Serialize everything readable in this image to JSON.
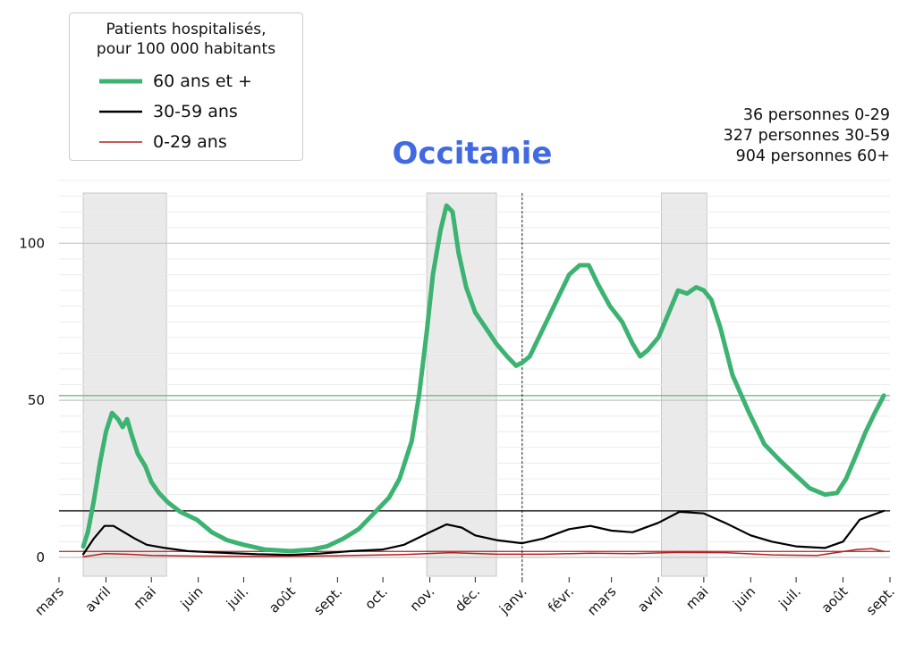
{
  "chart_data": {
    "type": "line",
    "title": "Occitanie",
    "legend": {
      "title_line1": "Patients hospitalisés,",
      "title_line2": "pour 100 000 habitants",
      "placement": "top-left"
    },
    "counts": {
      "line1": "36 personnes 0-29",
      "line2": "327 personnes 30-59",
      "line3": "904 personnes 60+"
    },
    "x_tick_labels": [
      "mars",
      "avril",
      "mai",
      "juin",
      "juil.",
      "août",
      "sept.",
      "oct.",
      "nov.",
      "déc.",
      "janv.",
      "févr.",
      "mars",
      "avril",
      "mai",
      "juin",
      "juil.",
      "août",
      "sept."
    ],
    "x_tick_dates": [
      "2020-03-01",
      "2020-04-01",
      "2020-05-01",
      "2020-06-01",
      "2020-07-01",
      "2020-08-01",
      "2020-09-01",
      "2020-10-01",
      "2020-11-01",
      "2020-12-01",
      "2021-01-01",
      "2021-02-01",
      "2021-03-01",
      "2021-04-01",
      "2021-05-01",
      "2021-06-01",
      "2021-07-01",
      "2021-08-01",
      "2021-09-01"
    ],
    "x_range": [
      "2020-03-01",
      "2021-09-01"
    ],
    "y_ticks": [
      0,
      50,
      100
    ],
    "y_tick_labels": [
      "0",
      "50",
      "100"
    ],
    "ylim": [
      -6,
      120
    ],
    "grid": true,
    "shaded_periods": [
      {
        "start": "2020-03-17",
        "end": "2020-05-11"
      },
      {
        "start": "2020-10-30",
        "end": "2020-12-15"
      },
      {
        "start": "2021-04-03",
        "end": "2021-05-03"
      }
    ],
    "vertical_marker": "2021-01-01",
    "series": [
      {
        "name": "60 ans et +",
        "color": "#3cb371",
        "reference_level": 51.5,
        "points": [
          [
            "2020-03-17",
            3.5
          ],
          [
            "2020-03-20",
            8
          ],
          [
            "2020-03-24",
            18
          ],
          [
            "2020-03-28",
            30
          ],
          [
            "2020-04-01",
            40
          ],
          [
            "2020-04-05",
            46
          ],
          [
            "2020-04-09",
            44
          ],
          [
            "2020-04-12",
            41.5
          ],
          [
            "2020-04-15",
            44
          ],
          [
            "2020-04-18",
            39
          ],
          [
            "2020-04-22",
            33
          ],
          [
            "2020-04-27",
            29
          ],
          [
            "2020-05-01",
            24
          ],
          [
            "2020-05-06",
            20.5
          ],
          [
            "2020-05-12",
            17.5
          ],
          [
            "2020-05-20",
            14.5
          ],
          [
            "2020-05-31",
            12
          ],
          [
            "2020-06-10",
            8
          ],
          [
            "2020-06-20",
            5.5
          ],
          [
            "2020-07-01",
            4
          ],
          [
            "2020-07-15",
            2.5
          ],
          [
            "2020-08-01",
            2
          ],
          [
            "2020-08-15",
            2.5
          ],
          [
            "2020-08-25",
            3.5
          ],
          [
            "2020-09-05",
            6
          ],
          [
            "2020-09-15",
            9
          ],
          [
            "2020-09-25",
            14
          ],
          [
            "2020-10-05",
            19
          ],
          [
            "2020-10-12",
            25
          ],
          [
            "2020-10-20",
            37
          ],
          [
            "2020-10-25",
            52
          ],
          [
            "2020-10-30",
            72
          ],
          [
            "2020-11-03",
            90
          ],
          [
            "2020-11-08",
            104
          ],
          [
            "2020-11-12",
            112
          ],
          [
            "2020-11-16",
            110
          ],
          [
            "2020-11-20",
            97
          ],
          [
            "2020-11-25",
            86
          ],
          [
            "2020-12-01",
            78
          ],
          [
            "2020-12-08",
            73
          ],
          [
            "2020-12-15",
            68
          ],
          [
            "2020-12-22",
            64
          ],
          [
            "2020-12-28",
            61
          ],
          [
            "2021-01-01",
            62
          ],
          [
            "2021-01-06",
            64
          ],
          [
            "2021-01-12",
            70
          ],
          [
            "2021-01-18",
            76
          ],
          [
            "2021-01-24",
            82
          ],
          [
            "2021-02-01",
            90
          ],
          [
            "2021-02-08",
            93
          ],
          [
            "2021-02-14",
            93
          ],
          [
            "2021-02-20",
            87
          ],
          [
            "2021-02-28",
            80
          ],
          [
            "2021-03-08",
            75
          ],
          [
            "2021-03-15",
            68
          ],
          [
            "2021-03-20",
            64
          ],
          [
            "2021-03-25",
            66
          ],
          [
            "2021-04-01",
            70
          ],
          [
            "2021-04-08",
            78
          ],
          [
            "2021-04-14",
            85
          ],
          [
            "2021-04-20",
            84
          ],
          [
            "2021-04-26",
            86
          ],
          [
            "2021-05-01",
            85
          ],
          [
            "2021-05-06",
            82
          ],
          [
            "2021-05-12",
            73
          ],
          [
            "2021-05-20",
            58
          ],
          [
            "2021-05-31",
            46
          ],
          [
            "2021-06-10",
            36
          ],
          [
            "2021-06-20",
            31
          ],
          [
            "2021-07-01",
            26
          ],
          [
            "2021-07-10",
            22
          ],
          [
            "2021-07-20",
            20
          ],
          [
            "2021-07-28",
            20.5
          ],
          [
            "2021-08-03",
            25
          ],
          [
            "2021-08-10",
            33
          ],
          [
            "2021-08-16",
            40
          ],
          [
            "2021-08-22",
            46
          ],
          [
            "2021-08-28",
            51.5
          ]
        ]
      },
      {
        "name": "30-59 ans",
        "color": "#000000",
        "reference_level": 14.8,
        "points": [
          [
            "2020-03-17",
            1
          ],
          [
            "2020-03-24",
            6
          ],
          [
            "2020-03-31",
            10
          ],
          [
            "2020-04-06",
            10
          ],
          [
            "2020-04-13",
            8
          ],
          [
            "2020-04-20",
            6
          ],
          [
            "2020-04-28",
            4
          ],
          [
            "2020-05-10",
            3
          ],
          [
            "2020-05-25",
            2
          ],
          [
            "2020-06-15",
            1.5
          ],
          [
            "2020-07-10",
            1
          ],
          [
            "2020-08-01",
            0.8
          ],
          [
            "2020-08-20",
            1.2
          ],
          [
            "2020-09-10",
            2
          ],
          [
            "2020-10-01",
            2.5
          ],
          [
            "2020-10-15",
            4
          ],
          [
            "2020-11-01",
            8
          ],
          [
            "2020-11-12",
            10.5
          ],
          [
            "2020-11-22",
            9.5
          ],
          [
            "2020-12-01",
            7
          ],
          [
            "2020-12-15",
            5.5
          ],
          [
            "2021-01-01",
            4.5
          ],
          [
            "2021-01-15",
            6
          ],
          [
            "2021-02-01",
            9
          ],
          [
            "2021-02-15",
            10
          ],
          [
            "2021-03-01",
            8.5
          ],
          [
            "2021-03-15",
            8
          ],
          [
            "2021-04-01",
            11
          ],
          [
            "2021-04-15",
            14.5
          ],
          [
            "2021-05-01",
            14
          ],
          [
            "2021-05-15",
            11
          ],
          [
            "2021-06-01",
            7
          ],
          [
            "2021-06-15",
            5
          ],
          [
            "2021-07-01",
            3.5
          ],
          [
            "2021-07-20",
            3
          ],
          [
            "2021-08-01",
            5
          ],
          [
            "2021-08-12",
            12
          ],
          [
            "2021-08-28",
            14.8
          ]
        ]
      },
      {
        "name": "0-29 ans",
        "color": "#b22222",
        "reference_level": 1.9,
        "points": [
          [
            "2020-03-17",
            0.2
          ],
          [
            "2020-03-31",
            1.2
          ],
          [
            "2020-04-15",
            1
          ],
          [
            "2020-05-01",
            0.6
          ],
          [
            "2020-06-01",
            0.4
          ],
          [
            "2020-07-15",
            0.3
          ],
          [
            "2020-09-01",
            0.5
          ],
          [
            "2020-10-15",
            0.9
          ],
          [
            "2020-11-15",
            1.5
          ],
          [
            "2020-12-15",
            1
          ],
          [
            "2021-01-15",
            1
          ],
          [
            "2021-02-15",
            1.3
          ],
          [
            "2021-03-15",
            1.2
          ],
          [
            "2021-04-15",
            1.6
          ],
          [
            "2021-05-15",
            1.5
          ],
          [
            "2021-06-15",
            0.8
          ],
          [
            "2021-07-15",
            0.6
          ],
          [
            "2021-08-10",
            2.5
          ],
          [
            "2021-08-20",
            2.8
          ],
          [
            "2021-08-28",
            1.9
          ]
        ]
      }
    ]
  }
}
